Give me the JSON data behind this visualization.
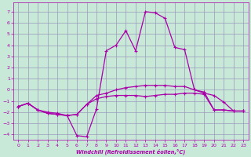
{
  "xlabel": "Windchill (Refroidissement éolien,°C)",
  "xlim": [
    -0.5,
    23.5
  ],
  "ylim": [
    -4.5,
    7.8
  ],
  "xticks": [
    0,
    1,
    2,
    3,
    4,
    5,
    6,
    7,
    8,
    9,
    10,
    11,
    12,
    13,
    14,
    15,
    16,
    17,
    18,
    19,
    20,
    21,
    22,
    23
  ],
  "yticks": [
    -4,
    -3,
    -2,
    -1,
    0,
    1,
    2,
    3,
    4,
    5,
    6,
    7
  ],
  "bg_color": "#c8e8d8",
  "line_color": "#aa00aa",
  "grid_color": "#9999bb",
  "line1_x": [
    0,
    1,
    2,
    3,
    4,
    5,
    6,
    7,
    8,
    9,
    10,
    11,
    12,
    13,
    14,
    15,
    16,
    17,
    18,
    19,
    20,
    21,
    22,
    23
  ],
  "line1_y": [
    -1.5,
    -1.2,
    -1.8,
    -2.1,
    -2.2,
    -2.3,
    -2.2,
    -1.3,
    -0.8,
    -0.6,
    -0.5,
    -0.5,
    -0.5,
    -0.6,
    -0.5,
    -0.4,
    -0.4,
    -0.3,
    -0.3,
    -0.4,
    -1.8,
    -1.8,
    -1.9,
    -1.9
  ],
  "line2_x": [
    0,
    1,
    2,
    3,
    4,
    5,
    6,
    7,
    8,
    9,
    10,
    11,
    12,
    13,
    14,
    15,
    16,
    17,
    18,
    19,
    20,
    21,
    22,
    23
  ],
  "line2_y": [
    -1.5,
    -1.2,
    -1.8,
    -2.1,
    -2.2,
    -2.3,
    -4.1,
    -4.2,
    -1.7,
    3.5,
    4.0,
    5.3,
    3.5,
    7.0,
    6.9,
    6.4,
    3.8,
    3.6,
    0.0,
    -0.3,
    -0.5,
    -1.1,
    -1.9,
    -1.9
  ],
  "line3_x": [
    0,
    1,
    2,
    3,
    4,
    5,
    6,
    7,
    8,
    9,
    10,
    11,
    12,
    13,
    14,
    15,
    16,
    17,
    18,
    19,
    20,
    21,
    22,
    23
  ],
  "line3_y": [
    -1.5,
    -1.2,
    -1.8,
    -2.0,
    -2.1,
    -2.3,
    -2.2,
    -1.3,
    -0.5,
    -0.3,
    0.0,
    0.2,
    0.3,
    0.4,
    0.4,
    0.4,
    0.3,
    0.3,
    0.0,
    -0.2,
    -1.8,
    -1.8,
    -1.9,
    -1.9
  ]
}
